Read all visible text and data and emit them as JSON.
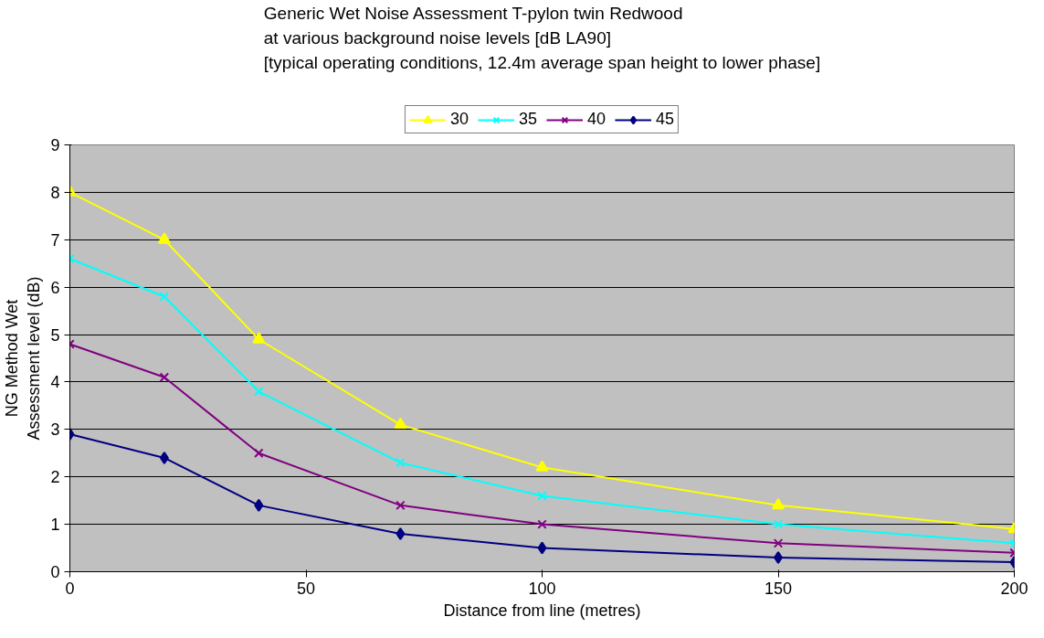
{
  "chart_data": {
    "type": "line",
    "title": "Generic Wet Noise Assessment T-pylon twin Redwood\nat various background noise levels [dB LA90]\n[typical operating conditions, 12.4m average span height to lower phase]",
    "xlabel": "Distance from line (metres)",
    "ylabel": "NG Method Wet\nAssessment level (dB)",
    "x": [
      0,
      20,
      40,
      70,
      100,
      150,
      200
    ],
    "series": [
      {
        "name": "30",
        "color": "#ffff00",
        "marker": "triangle",
        "values": [
          8,
          7,
          4.9,
          3.1,
          2.2,
          1.4,
          0.9
        ]
      },
      {
        "name": "35",
        "color": "#00ffff",
        "marker": "cross",
        "values": [
          6.6,
          5.8,
          3.8,
          2.3,
          1.6,
          1.0,
          0.6
        ]
      },
      {
        "name": "40",
        "color": "#800080",
        "marker": "cross",
        "values": [
          4.8,
          4.1,
          2.5,
          1.4,
          1.0,
          0.6,
          0.4
        ]
      },
      {
        "name": "45",
        "color": "#000080",
        "marker": "diamond",
        "values": [
          2.9,
          2.4,
          1.4,
          0.8,
          0.5,
          0.3,
          0.2
        ]
      }
    ],
    "xlim": [
      0,
      200
    ],
    "xticks": [
      0,
      50,
      100,
      150,
      200
    ],
    "ylim": [
      0,
      9
    ],
    "yticks": [
      0,
      1,
      2,
      3,
      4,
      5,
      6,
      7,
      8,
      9
    ],
    "grid": "y",
    "legend": "top",
    "line_style": "solid"
  }
}
